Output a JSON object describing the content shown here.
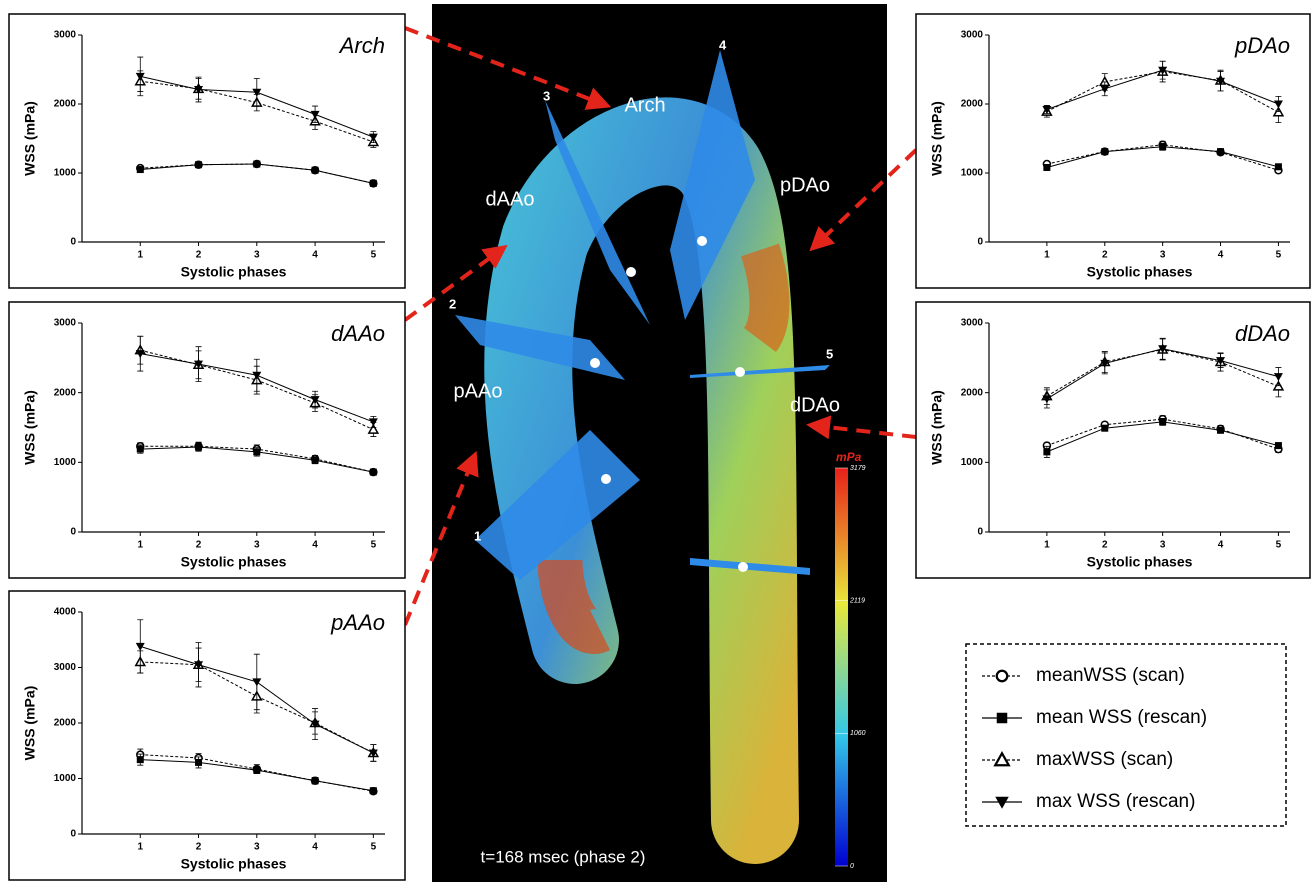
{
  "chart_data": [
    {
      "type": "line",
      "title": "Arch",
      "xlabel": "Systolic phases",
      "ylabel": "WSS (mPa)",
      "x": [
        1,
        2,
        3,
        4,
        5
      ],
      "xlim": [
        0,
        5.2
      ],
      "xticks": [
        1,
        2,
        3,
        4,
        5
      ],
      "ylim": [
        0,
        3000
      ],
      "yticks": [
        0,
        1000,
        2000,
        3000
      ],
      "series": [
        {
          "name": "meanWSS (scan)",
          "color": "#000000",
          "marker": "circle-open",
          "dashed": true,
          "values": [
            1070,
            1120,
            1130,
            1040,
            850
          ],
          "errors": [
            30,
            30,
            30,
            30,
            30
          ]
        },
        {
          "name": "mean WSS (rescan)",
          "color": "#000000",
          "marker": "square",
          "dashed": false,
          "values": [
            1050,
            1120,
            1130,
            1040,
            850
          ],
          "errors": [
            30,
            30,
            30,
            30,
            30
          ]
        },
        {
          "name": "maxWSS (scan)",
          "color": "#000000",
          "marker": "triangle-open",
          "dashed": true,
          "values": [
            2330,
            2220,
            2020,
            1750,
            1450
          ],
          "errors": [
            150,
            150,
            120,
            120,
            80
          ]
        },
        {
          "name": "max WSS (rescan)",
          "color": "#000000",
          "marker": "triangle-down",
          "dashed": false,
          "values": [
            2400,
            2210,
            2170,
            1850,
            1520
          ],
          "errors": [
            280,
            180,
            200,
            120,
            80
          ]
        }
      ]
    },
    {
      "type": "line",
      "title": "dAAo",
      "xlabel": "Systolic phases",
      "ylabel": "WSS (mPa)",
      "x": [
        1,
        2,
        3,
        4,
        5
      ],
      "xlim": [
        0,
        5.2
      ],
      "xticks": [
        1,
        2,
        3,
        4,
        5
      ],
      "ylim": [
        0,
        3000
      ],
      "yticks": [
        0,
        1000,
        2000,
        3000
      ],
      "series": [
        {
          "color": "#000000",
          "marker": "circle-open",
          "dashed": true,
          "values": [
            1230,
            1230,
            1190,
            1050,
            860
          ],
          "errors": [
            50,
            60,
            60,
            50,
            30
          ]
        },
        {
          "color": "#000000",
          "marker": "square",
          "dashed": false,
          "values": [
            1190,
            1220,
            1150,
            1030,
            860
          ],
          "errors": [
            60,
            60,
            60,
            50,
            30
          ]
        },
        {
          "color": "#000000",
          "marker": "triangle-open",
          "dashed": true,
          "values": [
            2610,
            2400,
            2180,
            1850,
            1470
          ],
          "errors": [
            200,
            200,
            200,
            120,
            100
          ]
        },
        {
          "color": "#000000",
          "marker": "triangle-down",
          "dashed": false,
          "values": [
            2560,
            2410,
            2250,
            1900,
            1580
          ],
          "errors": [
            250,
            250,
            230,
            120,
            80
          ]
        }
      ]
    },
    {
      "type": "line",
      "title": "pAAo",
      "xlabel": "Systolic phases",
      "ylabel": "WSS (mPa)",
      "x": [
        1,
        2,
        3,
        4,
        5
      ],
      "xlim": [
        0,
        5.2
      ],
      "xticks": [
        1,
        2,
        3,
        4,
        5
      ],
      "ylim": [
        0,
        4000
      ],
      "yticks": [
        0,
        1000,
        2000,
        3000,
        4000
      ],
      "series": [
        {
          "color": "#000000",
          "marker": "circle-open",
          "dashed": true,
          "values": [
            1430,
            1370,
            1170,
            960,
            770
          ],
          "errors": [
            100,
            80,
            80,
            60,
            30
          ]
        },
        {
          "color": "#000000",
          "marker": "square",
          "dashed": false,
          "values": [
            1340,
            1290,
            1150,
            960,
            780
          ],
          "errors": [
            100,
            100,
            60,
            60,
            30
          ]
        },
        {
          "color": "#000000",
          "marker": "triangle-open",
          "dashed": true,
          "values": [
            3100,
            3050,
            2480,
            2000,
            1460
          ],
          "errors": [
            200,
            300,
            300,
            200,
            150
          ]
        },
        {
          "color": "#000000",
          "marker": "triangle-down",
          "dashed": false,
          "values": [
            3380,
            3050,
            2740,
            1980,
            1460
          ],
          "errors": [
            480,
            400,
            500,
            280,
            150
          ]
        }
      ]
    },
    {
      "type": "line",
      "title": "pDAo",
      "xlabel": "Systolic phases",
      "ylabel": "WSS (mPa)",
      "x": [
        1,
        2,
        3,
        4,
        5
      ],
      "xlim": [
        0,
        5.2
      ],
      "xticks": [
        1,
        2,
        3,
        4,
        5
      ],
      "ylim": [
        0,
        3000
      ],
      "yticks": [
        0,
        1000,
        2000,
        3000
      ],
      "series": [
        {
          "color": "#000000",
          "marker": "circle-open",
          "dashed": true,
          "values": [
            1130,
            1310,
            1410,
            1300,
            1040
          ],
          "errors": [
            30,
            40,
            50,
            40,
            40
          ]
        },
        {
          "color": "#000000",
          "marker": "square",
          "dashed": false,
          "values": [
            1080,
            1310,
            1380,
            1310,
            1090
          ],
          "errors": [
            30,
            40,
            50,
            40,
            40
          ]
        },
        {
          "color": "#000000",
          "marker": "triangle-open",
          "dashed": true,
          "values": [
            1890,
            2320,
            2470,
            2340,
            1880
          ],
          "errors": [
            80,
            120,
            150,
            150,
            150
          ]
        },
        {
          "color": "#000000",
          "marker": "triangle-down",
          "dashed": false,
          "values": [
            1920,
            2220,
            2490,
            2330,
            2000
          ],
          "errors": [
            60,
            100,
            130,
            140,
            110
          ]
        }
      ]
    },
    {
      "type": "line",
      "title": "dDAo",
      "xlabel": "Systolic phases",
      "ylabel": "WSS (mPa)",
      "x": [
        1,
        2,
        3,
        4,
        5
      ],
      "xlim": [
        0,
        5.2
      ],
      "xticks": [
        1,
        2,
        3,
        4,
        5
      ],
      "ylim": [
        0,
        3000
      ],
      "yticks": [
        0,
        1000,
        2000,
        3000
      ],
      "series": [
        {
          "color": "#000000",
          "marker": "circle-open",
          "dashed": true,
          "values": [
            1240,
            1540,
            1620,
            1480,
            1190
          ],
          "errors": [
            40,
            40,
            50,
            50,
            50
          ]
        },
        {
          "color": "#000000",
          "marker": "square",
          "dashed": false,
          "values": [
            1150,
            1490,
            1580,
            1460,
            1240
          ],
          "errors": [
            80,
            40,
            50,
            40,
            40
          ]
        },
        {
          "color": "#000000",
          "marker": "triangle-open",
          "dashed": true,
          "values": [
            1950,
            2440,
            2620,
            2440,
            2090
          ],
          "errors": [
            120,
            150,
            150,
            130,
            150
          ]
        },
        {
          "color": "#000000",
          "marker": "triangle-down",
          "dashed": false,
          "values": [
            1910,
            2420,
            2630,
            2460,
            2230
          ],
          "errors": [
            130,
            150,
            150,
            100,
            130
          ]
        }
      ]
    }
  ],
  "image": {
    "labels": [
      "Arch",
      "dAAo",
      "pDAo",
      "pAAo",
      "dDAo"
    ],
    "planes": [
      "1",
      "2",
      "3",
      "4",
      "5"
    ],
    "caption": "t=168 msec (phase 2)",
    "colorbar": {
      "title": "mPa",
      "ticks": [
        0,
        1060,
        2119,
        3179
      ]
    }
  }
}
